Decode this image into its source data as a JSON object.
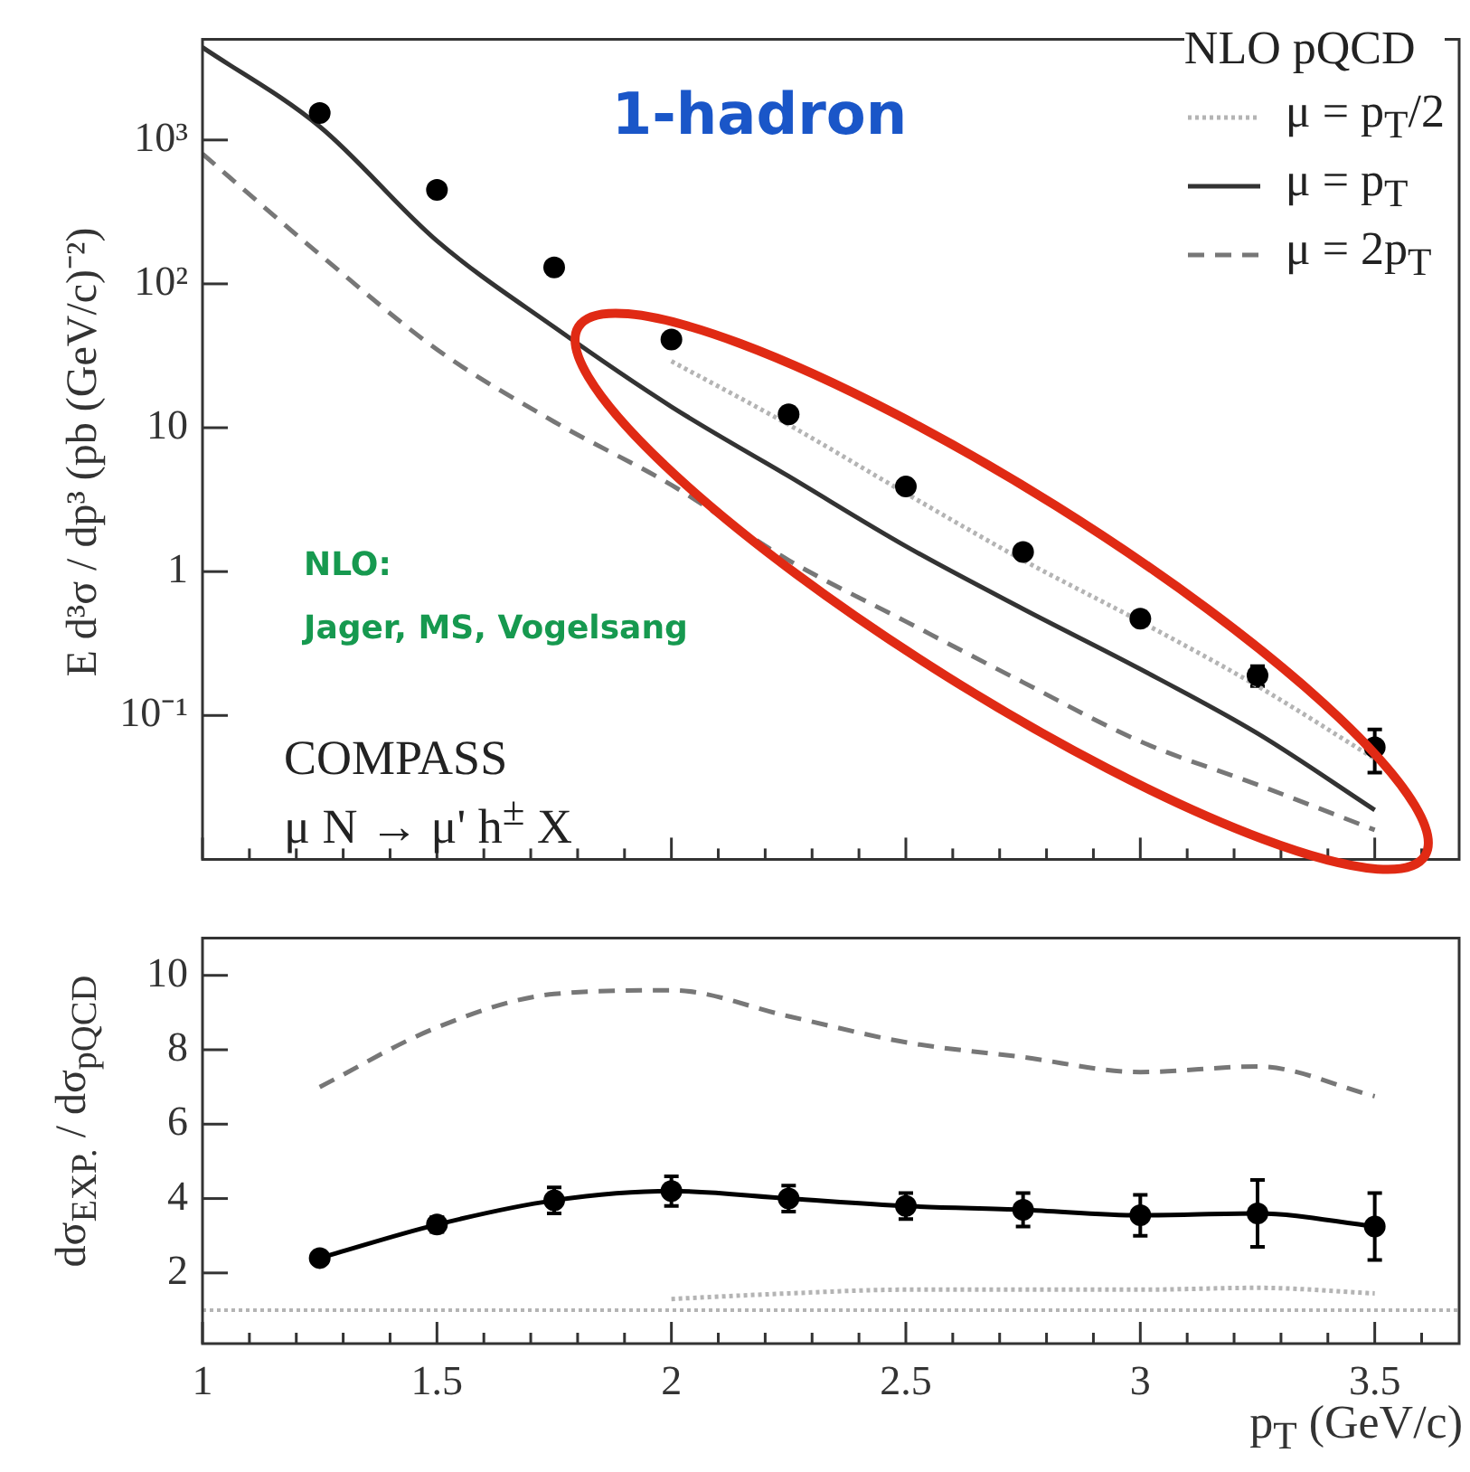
{
  "chart_data": [
    {
      "type": "scatter",
      "title": "1-hadron",
      "ylabel": "E d³σ / dp³ (pb (GeV/c)⁻²)",
      "legend_title": "NLO pQCD",
      "annotations": [
        "NLO:",
        "Jager, MS, Vogelsang",
        "COMPASS",
        "μ N → μ' h$^{±}$ X"
      ],
      "legend": "top right",
      "log": "y",
      "tick_labels": "y",
      "x": [
        1.25,
        1.5,
        1.75,
        2,
        2.25,
        2.5,
        2.75,
        3,
        3.25,
        3.5
      ],
      "series": [
        {
          "color": "#000000",
          "marker": "circle",
          "values": [
            1540,
            450,
            130,
            41,
            12.4,
            3.9,
            1.37,
            0.47,
            0.19,
            0.06
          ],
          "errors": [
            null,
            null,
            null,
            null,
            null,
            null,
            null,
            null,
            0.03,
            0.02
          ]
        },
        {
          "type": "line",
          "name": "μ = p$_{T}$/2",
          "color": "#b4b4b4",
          "line_style": "dotted",
          "x": [
            2,
            2.25,
            2.5,
            2.75,
            3,
            3.25,
            3.5
          ],
          "values": [
            29,
            10.5,
            3.5,
            1.2,
            0.45,
            0.16,
            0.05
          ]
        },
        {
          "type": "line",
          "name": "μ = p$_{T}$",
          "color": "#333333",
          "line_style": "solid",
          "x": [
            1,
            1.25,
            1.5,
            1.75,
            2,
            2.25,
            2.5,
            2.75,
            3,
            3.25,
            3.5
          ],
          "values": [
            4400,
            1240,
            199,
            50,
            14,
            4.6,
            1.5,
            0.55,
            0.21,
            0.075,
            0.022
          ]
        },
        {
          "type": "line",
          "name": "μ = 2p$_{T}$",
          "color": "#777777",
          "line_style": "dashed",
          "x": [
            1,
            1.25,
            1.5,
            1.75,
            2,
            2.25,
            2.5,
            2.75,
            3,
            3.25,
            3.5
          ],
          "values": [
            800,
            160,
            35,
            11,
            4,
            1.2,
            0.45,
            0.17,
            0.066,
            0.033,
            0.016
          ]
        }
      ],
      "xlim": [
        1,
        3.68
      ],
      "xticks": [
        1,
        {
          "value": 1.1,
          "label": null
        },
        {
          "value": 1.2,
          "label": null
        },
        {
          "value": 1.3,
          "label": null
        },
        {
          "value": 1.4,
          "label": null
        },
        1.5,
        {
          "value": 1.6,
          "label": null
        },
        {
          "value": 1.7,
          "label": null
        },
        {
          "value": 1.8,
          "label": null
        },
        {
          "value": 1.9,
          "label": null
        },
        2,
        {
          "value": 2.1,
          "label": null
        },
        {
          "value": 2.2,
          "label": null
        },
        {
          "value": 2.3,
          "label": null
        },
        {
          "value": 2.4,
          "label": null
        },
        2.5,
        {
          "value": 2.6,
          "label": null
        },
        {
          "value": 2.7,
          "label": null
        },
        {
          "value": 2.8,
          "label": null
        },
        {
          "value": 2.9,
          "label": null
        },
        3,
        {
          "value": 3.1,
          "label": null
        },
        {
          "value": 3.2,
          "label": null
        },
        {
          "value": 3.3,
          "label": null
        },
        {
          "value": 3.4,
          "label": null
        },
        3.5,
        {
          "value": 3.6,
          "label": null
        }
      ],
      "ylim": [
        0.01,
        5000
      ],
      "yticks": [
        {
          "value": 0.1,
          "label": "10⁻¹"
        },
        1,
        10,
        {
          "value": 100,
          "label": "10²"
        },
        {
          "value": 1000,
          "label": "10³"
        }
      ]
    },
    {
      "type": "line",
      "xlabel": "p$_{T}$ (GeV/c)",
      "ylabel": "dσ$_{EXP.}$ / dσ$_{pQCD}$",
      "x": [
        1.25,
        1.5,
        1.75,
        2,
        2.25,
        2.5,
        2.75,
        3,
        3.25,
        3.5
      ],
      "series": [
        {
          "color": "#000000",
          "marker": "circle",
          "line_style": "solid",
          "values": [
            2.4,
            3.3,
            3.95,
            4.2,
            4.0,
            3.8,
            3.7,
            3.55,
            3.6,
            3.25
          ],
          "errors": [
            0.1,
            0.2,
            0.35,
            0.4,
            0.35,
            0.35,
            0.45,
            0.55,
            0.9,
            0.9
          ]
        },
        {
          "color": "#777777",
          "line_style": "dashed",
          "values": [
            7.0,
            8.6,
            9.5,
            9.6,
            8.9,
            8.2,
            7.8,
            7.4,
            7.55,
            6.75
          ]
        },
        {
          "color": "#b4b4b4",
          "line_style": "dotted",
          "x": [
            2,
            2.25,
            2.5,
            2.75,
            3,
            3.25,
            3.5
          ],
          "values": [
            1.3,
            1.45,
            1.55,
            1.55,
            1.55,
            1.6,
            1.45
          ]
        }
      ],
      "ref_lines": [
        {
          "axis": "y",
          "value": 1,
          "color": "#b4b4b4",
          "line_style": "dotted"
        }
      ],
      "xlim": [
        1,
        3.68
      ],
      "xticks": [
        1,
        {
          "value": 1.1,
          "label": null
        },
        {
          "value": 1.2,
          "label": null
        },
        {
          "value": 1.3,
          "label": null
        },
        {
          "value": 1.4,
          "label": null
        },
        1.5,
        {
          "value": 1.6,
          "label": null
        },
        {
          "value": 1.7,
          "label": null
        },
        {
          "value": 1.8,
          "label": null
        },
        {
          "value": 1.9,
          "label": null
        },
        2,
        {
          "value": 2.1,
          "label": null
        },
        {
          "value": 2.2,
          "label": null
        },
        {
          "value": 2.3,
          "label": null
        },
        {
          "value": 2.4,
          "label": null
        },
        2.5,
        {
          "value": 2.6,
          "label": null
        },
        {
          "value": 2.7,
          "label": null
        },
        {
          "value": 2.8,
          "label": null
        },
        {
          "value": 2.9,
          "label": null
        },
        3,
        {
          "value": 3.1,
          "label": null
        },
        {
          "value": 3.2,
          "label": null
        },
        {
          "value": 3.3,
          "label": null
        },
        {
          "value": 3.4,
          "label": null
        },
        3.5,
        {
          "value": 3.6,
          "label": null
        }
      ],
      "ylim": [
        0.1,
        11
      ],
      "yticks": [
        2,
        4,
        6,
        8,
        10
      ]
    }
  ]
}
